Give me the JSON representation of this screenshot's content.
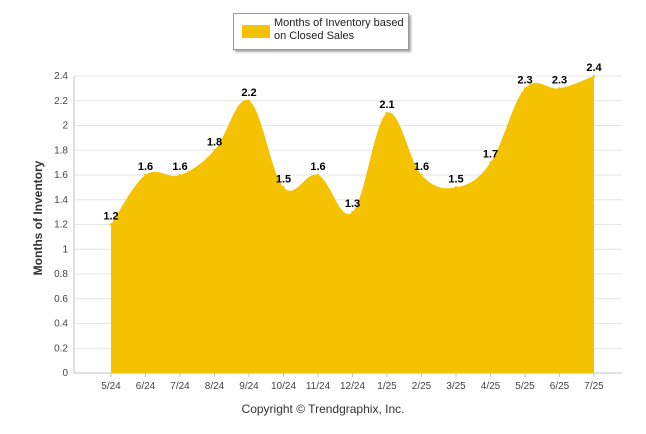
{
  "chart_data": {
    "type": "area",
    "categories": [
      "5/24",
      "6/24",
      "7/24",
      "8/24",
      "9/24",
      "10/24",
      "11/24",
      "12/24",
      "1/25",
      "2/25",
      "3/25",
      "4/25",
      "5/25",
      "6/25",
      "7/25"
    ],
    "series": [
      {
        "name": "Months of Inventory based on Closed Sales",
        "values": [
          1.2,
          1.6,
          1.6,
          1.8,
          2.2,
          1.5,
          1.6,
          1.3,
          2.1,
          1.6,
          1.5,
          1.7,
          2.3,
          2.3,
          2.4
        ]
      }
    ],
    "data_labels": [
      "1.2",
      "1.6",
      "1.6",
      "1.8",
      "2.2",
      "1.5",
      "1.6",
      "1.3",
      "2.1",
      "1.6",
      "1.5",
      "1.7",
      "2.3",
      "2.3",
      "2.4"
    ],
    "yticks": [
      0,
      0.2,
      0.4,
      0.6,
      0.8,
      1,
      1.2,
      1.4,
      1.6,
      1.8,
      2,
      2.2,
      2.4
    ],
    "ytick_labels": [
      "0",
      "0.2",
      "0.4",
      "0.6",
      "0.8",
      "1",
      "1.2",
      "1.4",
      "1.6",
      "1.8",
      "2",
      "2.2",
      "2.4"
    ],
    "ylim": [
      0,
      2.4
    ],
    "xlabel": "",
    "ylabel": "Months of Inventory",
    "grid": true,
    "legend_position": "top-center",
    "colors": {
      "fill": "#F5C200",
      "grid": "#e6e6e6",
      "axis": "#c0c0c0"
    }
  },
  "legend": {
    "label": "Months of Inventory based on Closed Sales"
  },
  "footer": {
    "copyright": "Copyright © Trendgraphix, Inc."
  }
}
